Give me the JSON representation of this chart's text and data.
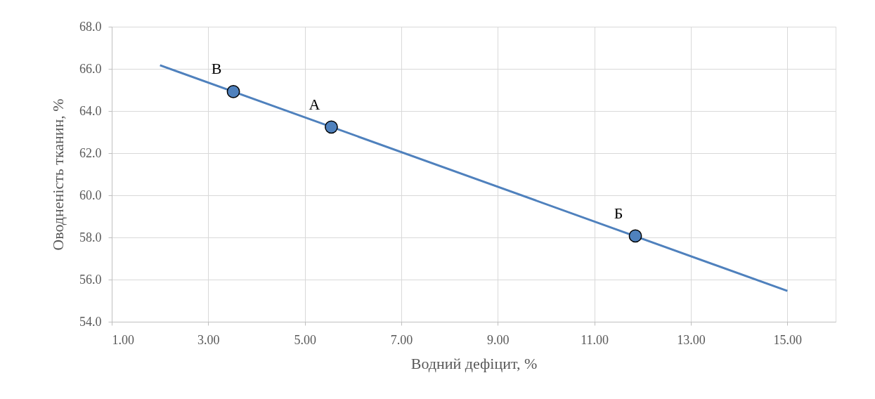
{
  "chart_data": {
    "type": "scatter",
    "xlabel": "Водний дефіцит, %",
    "ylabel": "Оводненість тканин, %",
    "xlim": [
      1,
      16
    ],
    "xticks": [
      {
        "value": 1,
        "label": "1.00"
      },
      {
        "value": 3,
        "label": "3.00"
      },
      {
        "value": 5,
        "label": "5.00"
      },
      {
        "value": 7,
        "label": "7.00"
      },
      {
        "value": 9,
        "label": "9.00"
      },
      {
        "value": 11,
        "label": "11.00"
      },
      {
        "value": 13,
        "label": "13.00"
      },
      {
        "value": 15,
        "label": "15.00"
      }
    ],
    "ylim": [
      54,
      68
    ],
    "yticks": [
      {
        "value": 54,
        "label": "54.0"
      },
      {
        "value": 56,
        "label": "56.0"
      },
      {
        "value": 58,
        "label": "58.0"
      },
      {
        "value": 60,
        "label": "60.0"
      },
      {
        "value": 62,
        "label": "62.0"
      },
      {
        "value": 64,
        "label": "64.0"
      },
      {
        "value": 66,
        "label": "66.0"
      },
      {
        "value": 68,
        "label": "68.0"
      }
    ],
    "grid": true,
    "series": [
      {
        "type": "line",
        "color": "#4f81bd",
        "x": [
          2,
          15
        ],
        "values": [
          66.17,
          55.46
        ],
        "line_style": "solid"
      },
      {
        "type": "scatter",
        "color": "#4f81bd",
        "x": [
          3.52,
          5.55,
          11.85
        ],
        "values": [
          64.92,
          63.24,
          58.07
        ],
        "marker": "circle"
      }
    ],
    "annotations": [
      {
        "text": "В",
        "x": 3.52,
        "y": 64.92
      },
      {
        "text": "А",
        "x": 5.55,
        "y": 63.24
      },
      {
        "text": "Б",
        "x": 11.85,
        "y": 58.07
      }
    ]
  }
}
